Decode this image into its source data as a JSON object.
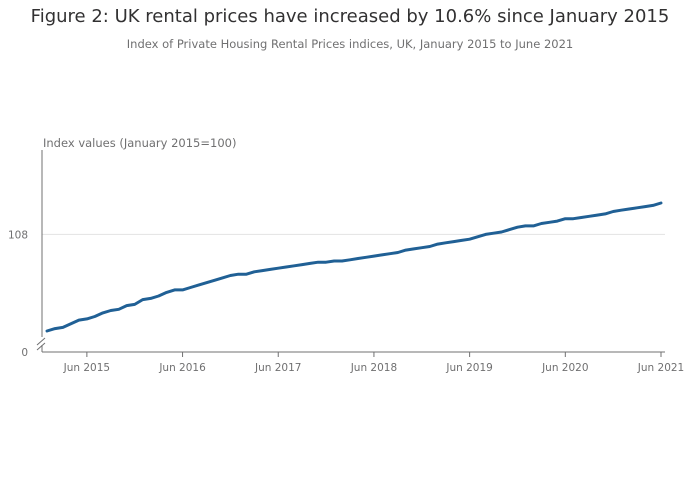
{
  "header": {
    "title": "Figure 2: UK rental prices have increased by 10.6% since January 2015",
    "subtitle": "Index of Private Housing Rental Prices indices, UK, January 2015 to June 2021"
  },
  "chart_data": {
    "type": "line",
    "ylabel": "Index values (January 2015=100)",
    "y_ticks": [
      "0",
      "108"
    ],
    "x_ticks": [
      "Jun 2015",
      "Jun 2016",
      "Jun 2017",
      "Jun 2018",
      "Jun 2019",
      "Jun 2020",
      "Jun 2021"
    ],
    "axis_break": true,
    "colors": {
      "series": "#206095",
      "axis": "#707071",
      "grid": "#e2e2e3"
    },
    "series": [
      {
        "x": [
          "Jan 2015",
          "Feb 2015",
          "Mar 2015",
          "Apr 2015",
          "May 2015",
          "Jun 2015",
          "Jul 2015",
          "Aug 2015",
          "Sep 2015",
          "Oct 2015",
          "Nov 2015",
          "Dec 2015",
          "Jan 2016",
          "Feb 2016",
          "Mar 2016",
          "Apr 2016",
          "May 2016",
          "Jun 2016",
          "Jul 2016",
          "Aug 2016",
          "Sep 2016",
          "Oct 2016",
          "Nov 2016",
          "Dec 2016",
          "Jan 2017",
          "Feb 2017",
          "Mar 2017",
          "Apr 2017",
          "May 2017",
          "Jun 2017",
          "Jul 2017",
          "Aug 2017",
          "Sep 2017",
          "Oct 2017",
          "Nov 2017",
          "Dec 2017",
          "Jan 2018",
          "Feb 2018",
          "Mar 2018",
          "Apr 2018",
          "May 2018",
          "Jun 2018",
          "Jul 2018",
          "Aug 2018",
          "Sep 2018",
          "Oct 2018",
          "Nov 2018",
          "Dec 2018",
          "Jan 2019",
          "Feb 2019",
          "Mar 2019",
          "Apr 2019",
          "May 2019",
          "Jun 2019",
          "Jul 2019",
          "Aug 2019",
          "Sep 2019",
          "Oct 2019",
          "Nov 2019",
          "Dec 2019",
          "Jan 2020",
          "Feb 2020",
          "Mar 2020",
          "Apr 2020",
          "May 2020",
          "Jun 2020",
          "Jul 2020",
          "Aug 2020",
          "Sep 2020",
          "Oct 2020",
          "Nov 2020",
          "Dec 2020",
          "Jan 2021",
          "Feb 2021",
          "Mar 2021",
          "Apr 2021",
          "May 2021",
          "Jun 2021"
        ],
        "values": [
          100.0,
          100.2,
          100.3,
          100.6,
          100.9,
          101.0,
          101.2,
          101.5,
          101.7,
          101.8,
          102.1,
          102.2,
          102.6,
          102.7,
          102.9,
          103.2,
          103.4,
          103.4,
          103.6,
          103.8,
          104.0,
          104.2,
          104.4,
          104.6,
          104.7,
          104.7,
          104.9,
          105.0,
          105.1,
          105.2,
          105.3,
          105.4,
          105.5,
          105.6,
          105.7,
          105.7,
          105.8,
          105.8,
          105.9,
          106.0,
          106.1,
          106.2,
          106.3,
          106.4,
          106.5,
          106.7,
          106.8,
          106.9,
          107.0,
          107.2,
          107.3,
          107.4,
          107.5,
          107.6,
          107.8,
          108.0,
          108.1,
          108.2,
          108.4,
          108.6,
          108.7,
          108.7,
          108.9,
          109.0,
          109.1,
          109.3,
          109.3,
          109.4,
          109.5,
          109.6,
          109.7,
          109.9,
          110.0,
          110.1,
          110.2,
          110.3,
          110.4,
          110.6
        ]
      }
    ]
  }
}
